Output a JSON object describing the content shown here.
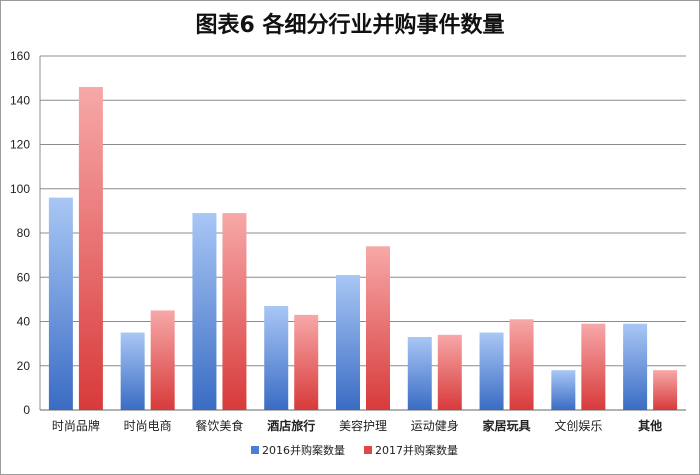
{
  "chart_data": {
    "type": "bar",
    "title": "图表6 各细分行业并购事件数量",
    "categories": [
      "时尚品牌",
      "时尚电商",
      "餐饮美食",
      "酒店旅行",
      "美容护理",
      "运动健身",
      "家居玩具",
      "文创娱乐",
      "其他"
    ],
    "bold_categories": [
      "酒店旅行",
      "家居玩具",
      "其他"
    ],
    "series": [
      {
        "name": "2016并购案数量",
        "color": "#4a7fd4",
        "values": [
          96,
          35,
          89,
          47,
          61,
          33,
          35,
          18,
          39
        ]
      },
      {
        "name": "2017并购案数量",
        "color": "#e04848",
        "values": [
          146,
          45,
          89,
          43,
          74,
          34,
          41,
          39,
          18
        ]
      }
    ],
    "ylim": [
      0,
      160
    ],
    "yticks": [
      0,
      20,
      40,
      60,
      80,
      100,
      120,
      140,
      160
    ],
    "grid": true,
    "legend_position": "bottom"
  }
}
